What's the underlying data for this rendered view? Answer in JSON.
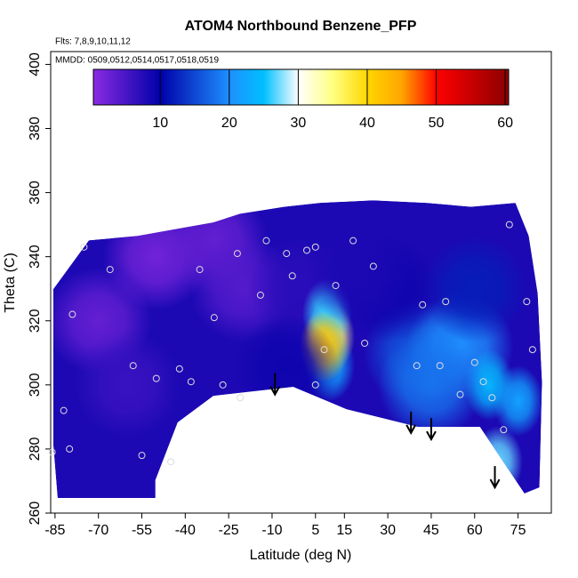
{
  "chart_data": {
    "type": "contour",
    "title": "ATOM4 Northbound Benzene_PFP",
    "annotations": [
      "Flts: 7,8,9,10,11,12",
      "MMDD: 0509,0512,0514,0517,0518,0519"
    ],
    "x_label": "Latitude (deg N)",
    "y_label": "Theta (C)",
    "xlim": [
      -86.5,
      86.5
    ],
    "xticks": [
      -85,
      -70,
      -55,
      -40,
      -25,
      -10,
      5,
      15,
      30,
      45,
      60,
      75
    ],
    "ylim": [
      260,
      404
    ],
    "yticks": [
      260,
      280,
      300,
      320,
      340,
      360,
      380,
      400
    ],
    "colorscale": {
      "values": [
        0.3,
        10,
        20,
        25,
        30,
        35,
        40,
        45,
        50,
        60.5
      ],
      "colors": [
        "#8a2be2",
        "#0000a8",
        "#1e90ff",
        "#00bfff",
        "#ffffff",
        "#ffff80",
        "#ffd700",
        "#ffa500",
        "#ff0000",
        "#8b0000"
      ]
    },
    "clim": [
      0.3,
      60.5
    ],
    "cticks": [
      10,
      20,
      30,
      40,
      50,
      60
    ],
    "boundary": {
      "lat": [
        -85.6,
        -73.3,
        -56.4,
        -30.3,
        -21.1,
        -5.8,
        6.5,
        24.9,
        43.4,
        58.7,
        74.1,
        78.7,
        81.8,
        83.3,
        82.4,
        77.2,
        61.8,
        40.3,
        15.7,
        -2.7,
        -30.3,
        -42.6,
        -50.3,
        -50.3,
        -84.1,
        -85.6
      ],
      "theta": [
        329.9,
        345.1,
        346.5,
        350.7,
        353.4,
        355.6,
        356.8,
        357.6,
        356.8,
        355.6,
        356.8,
        346.5,
        328.5,
        300.8,
        268.0,
        266.1,
        286.9,
        286.9,
        292.4,
        299.4,
        296.6,
        288.3,
        270.3,
        264.7,
        264.7,
        281.3
      ]
    },
    "field": {
      "lat": [
        -70,
        -50,
        -30,
        -20,
        -60,
        0,
        10,
        9,
        10,
        8,
        40,
        55,
        65,
        75,
        68,
        45,
        30,
        20,
        60,
        -30,
        -5
      ],
      "theta": [
        320,
        340,
        345,
        330,
        300,
        330,
        315,
        322,
        306,
        312,
        310,
        312,
        300,
        295,
        276,
        300,
        330,
        335,
        330,
        300,
        305
      ],
      "values": [
        3,
        2,
        3,
        4,
        6,
        7,
        34,
        26,
        22,
        42,
        16,
        20,
        24,
        22,
        27,
        18,
        9,
        8,
        12,
        8,
        9
      ]
    },
    "observations": {
      "lat": [
        -86,
        -79,
        -75,
        -82,
        -80,
        -66,
        -58,
        -55,
        -50,
        -45,
        -42,
        -38,
        -35,
        -30,
        -27,
        -22,
        -21,
        -14,
        -12,
        -5,
        -3,
        2,
        5,
        5,
        8,
        12,
        18,
        22,
        25,
        40,
        42,
        48,
        50,
        55,
        60,
        63,
        66,
        70,
        72,
        78,
        80
      ],
      "theta": [
        279,
        322,
        343,
        292,
        280,
        336,
        306,
        278,
        302,
        276,
        305,
        301,
        336,
        321,
        300,
        341,
        296,
        328,
        345,
        341,
        334,
        342,
        300,
        343,
        311,
        331,
        345,
        313,
        337,
        306,
        325,
        306,
        326,
        297,
        307,
        301,
        296,
        286,
        350,
        326,
        311
      ]
    },
    "arrows": {
      "lat": [
        -9,
        38,
        45,
        67
      ],
      "theta": [
        297,
        285,
        283,
        268
      ]
    }
  }
}
